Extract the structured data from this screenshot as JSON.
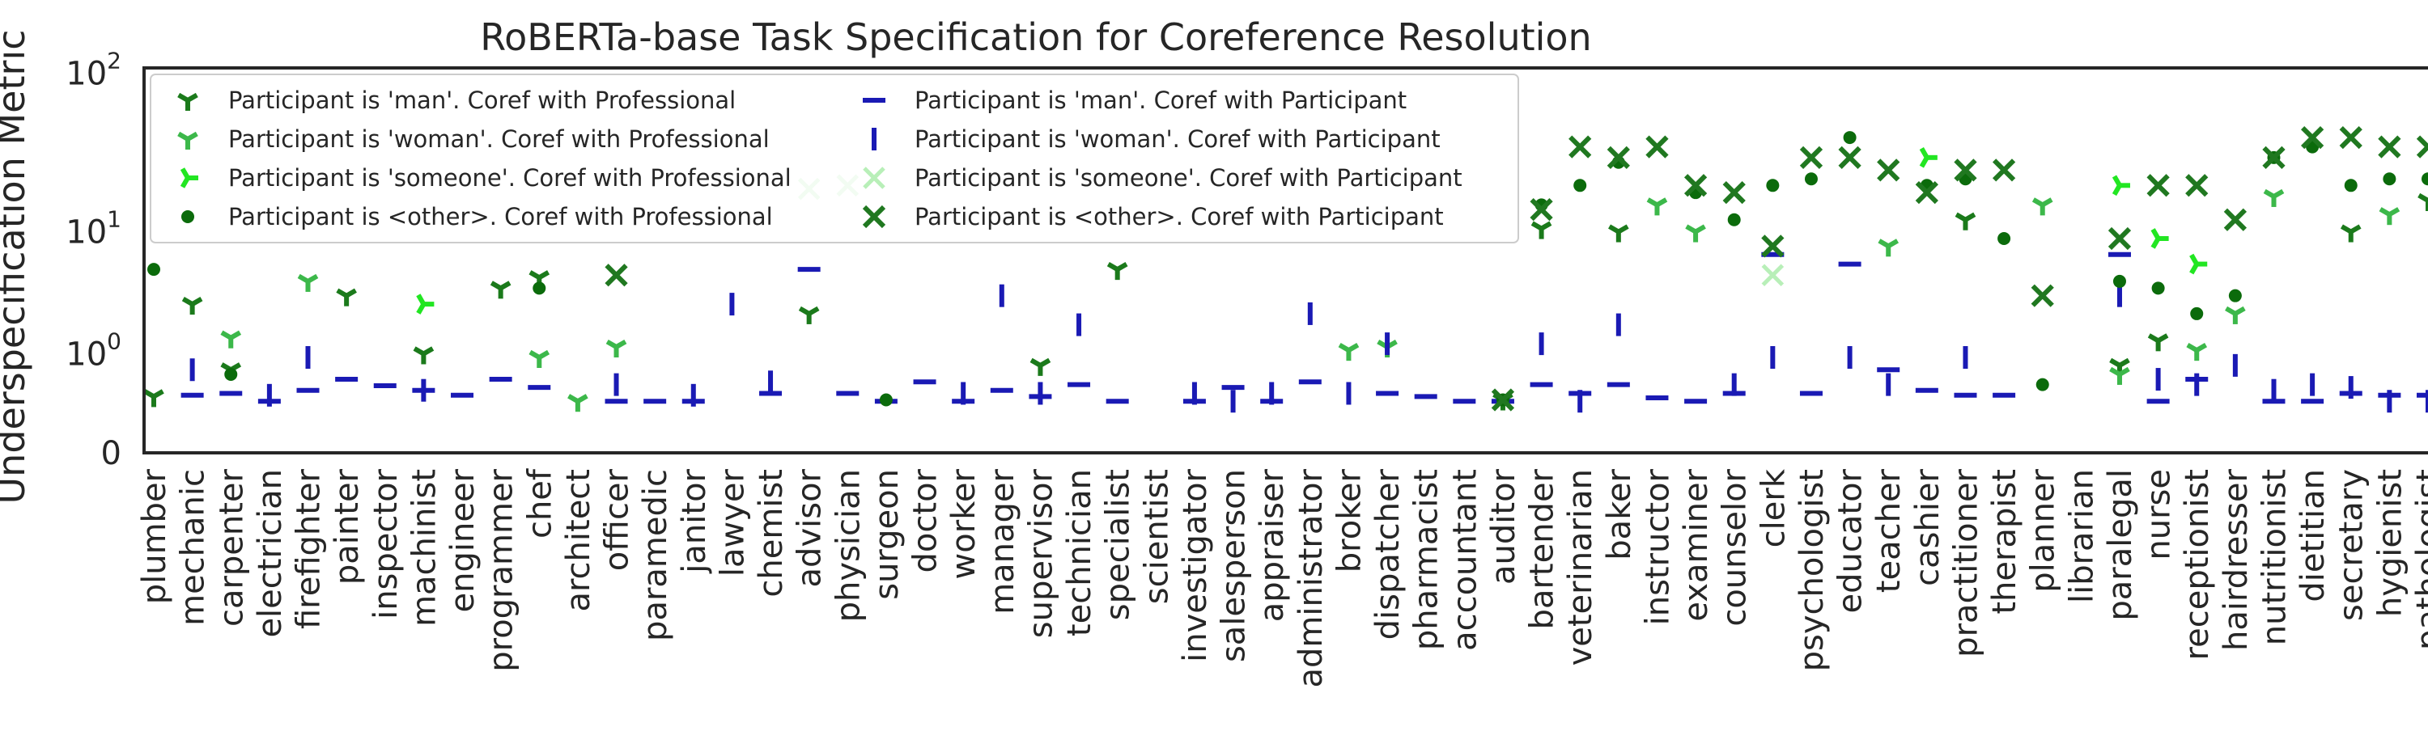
{
  "chart_data": {
    "type": "scatter",
    "title": "RoBERTa-base Task Specification for Coreference Resolution",
    "xlabel": "",
    "ylabel": "Underspecification Metric",
    "yscale": "symlog",
    "ylim": [
      0,
      100
    ],
    "yticks": [
      {
        "value": 0,
        "label": "0"
      },
      {
        "value": 1,
        "label": "10",
        "sup": "0"
      },
      {
        "value": 10,
        "label": "10",
        "sup": "1"
      },
      {
        "value": 100,
        "label": "10",
        "sup": "2"
      }
    ],
    "grid": false,
    "legend_position": "top-left",
    "categories": [
      "plumber",
      "mechanic",
      "carpenter",
      "electrician",
      "firefighter",
      "painter",
      "inspector",
      "machinist",
      "engineer",
      "programmer",
      "chef",
      "architect",
      "officer",
      "paramedic",
      "janitor",
      "lawyer",
      "chemist",
      "advisor",
      "physician",
      "surgeon",
      "doctor",
      "worker",
      "manager",
      "supervisor",
      "technician",
      "specialist",
      "scientist",
      "investigator",
      "salesperson",
      "appraiser",
      "administrator",
      "broker",
      "dispatcher",
      "pharmacist",
      "accountant",
      "auditor",
      "bartender",
      "veterinarian",
      "baker",
      "instructor",
      "examiner",
      "counselor",
      "clerk",
      "psychologist",
      "educator",
      "teacher",
      "cashier",
      "practitioner",
      "therapist",
      "planner",
      "librarian",
      "paralegal",
      "nurse",
      "receptionist",
      "hairdresser",
      "nutritionist",
      "dietitian",
      "secretary",
      "hygienist",
      "pathologist"
    ],
    "series": [
      {
        "name": "Participant is 'man'. Coref with Professional",
        "marker": "tri_down",
        "color": "#1b7a1b",
        "values": [
          0.1,
          3.0,
          0.6,
          null,
          null,
          3.5,
          null,
          1.0,
          null,
          4.0,
          4.8,
          null,
          null,
          null,
          null,
          null,
          null,
          2.5,
          null,
          null,
          null,
          null,
          null,
          0.7,
          null,
          5.5,
          null,
          null,
          null,
          null,
          null,
          null,
          null,
          null,
          null,
          0.05,
          10.5,
          null,
          10,
          null,
          null,
          null,
          null,
          null,
          null,
          null,
          null,
          12,
          null,
          null,
          null,
          0.7,
          1.4,
          null,
          null,
          null,
          null,
          10,
          null,
          16
        ]
      },
      {
        "name": "Participant is 'man'. Coref with Participant",
        "marker": "hline",
        "color": "#1a1ab4",
        "values": [
          null,
          0.12,
          0.15,
          0.03,
          0.2,
          0.4,
          0.28,
          0.2,
          0.12,
          0.4,
          0.25,
          null,
          0.03,
          0.03,
          0.03,
          null,
          0.15,
          5.5,
          0.15,
          0.03,
          0.35,
          0.03,
          0.2,
          0.1,
          0.3,
          0.03,
          null,
          0.03,
          0.25,
          0.03,
          0.35,
          null,
          0.15,
          0.1,
          0.03,
          0.03,
          0.3,
          0.15,
          0.3,
          0.08,
          0.03,
          0.15,
          7,
          0.15,
          6,
          0.6,
          0.2,
          0.12,
          0.12,
          null,
          null,
          7,
          0.03,
          0.4,
          null,
          0.03,
          0.03,
          0.15,
          0.12,
          0.12
        ]
      },
      {
        "name": "Participant is 'woman'. Coref with Professional",
        "marker": "tri_down",
        "color": "#3cb84a",
        "values": [
          null,
          null,
          1.5,
          null,
          4.5,
          null,
          null,
          null,
          null,
          null,
          0.9,
          0.03,
          1.2,
          null,
          null,
          null,
          null,
          null,
          null,
          null,
          null,
          null,
          null,
          null,
          null,
          null,
          null,
          null,
          null,
          null,
          null,
          1.1,
          1.2,
          null,
          null,
          null,
          null,
          null,
          null,
          15,
          10,
          null,
          null,
          null,
          null,
          8,
          null,
          null,
          null,
          15,
          null,
          0.5,
          null,
          1.1,
          2.5,
          17,
          null,
          null,
          13,
          null
        ]
      },
      {
        "name": "Participant is 'woman'. Coref with Participant",
        "marker": "vline",
        "color": "#1a1ab4",
        "values": [
          null,
          0.6,
          null,
          0.12,
          0.9,
          null,
          null,
          0.2,
          null,
          null,
          null,
          null,
          0.3,
          null,
          0.12,
          3.0,
          0.35,
          null,
          null,
          null,
          null,
          0.15,
          3.5,
          0.15,
          2.0,
          null,
          null,
          0.15,
          0.03,
          0.15,
          2.5,
          0.15,
          1.3,
          null,
          null,
          null,
          1.3,
          0.03,
          2.0,
          null,
          null,
          0.3,
          0.9,
          null,
          0.9,
          0.3,
          null,
          0.9,
          null,
          null,
          null,
          3.5,
          0.4,
          0.3,
          0.7,
          0.2,
          0.3,
          0.25,
          0.03,
          0.03
        ]
      },
      {
        "name": "Participant is 'someone'. Coref with Professional",
        "marker": "tri_left",
        "color": "#22e622",
        "values": [
          null,
          null,
          null,
          null,
          null,
          null,
          null,
          3.0,
          null,
          null,
          null,
          null,
          null,
          null,
          null,
          null,
          null,
          null,
          null,
          null,
          null,
          null,
          null,
          null,
          null,
          null,
          null,
          null,
          null,
          null,
          null,
          null,
          null,
          null,
          null,
          null,
          null,
          null,
          null,
          null,
          null,
          null,
          null,
          null,
          null,
          null,
          30,
          null,
          null,
          null,
          null,
          20,
          9,
          6,
          null,
          null,
          null,
          null,
          null,
          null
        ]
      },
      {
        "name": "Participant is 'someone'. Coref with Participant",
        "marker": "x",
        "color": "#b8efb8",
        "values": [
          null,
          null,
          null,
          null,
          null,
          null,
          null,
          null,
          null,
          null,
          null,
          null,
          null,
          null,
          null,
          null,
          null,
          19,
          20,
          null,
          null,
          null,
          null,
          null,
          null,
          null,
          null,
          null,
          null,
          null,
          null,
          null,
          null,
          null,
          null,
          null,
          null,
          null,
          null,
          null,
          null,
          null,
          5,
          null,
          null,
          null,
          null,
          null,
          null,
          null,
          null,
          null,
          null,
          null,
          null,
          null,
          null,
          null,
          null,
          null
        ]
      },
      {
        "name": "Participant is <other>. Coref with Professional",
        "marker": "circle",
        "color": "#0b6b0b",
        "values": [
          5.5,
          null,
          0.5,
          null,
          null,
          null,
          null,
          null,
          null,
          null,
          4.0,
          null,
          null,
          null,
          null,
          null,
          null,
          null,
          null,
          0.05,
          null,
          null,
          null,
          null,
          null,
          null,
          null,
          null,
          null,
          null,
          null,
          null,
          null,
          null,
          null,
          0.05,
          15,
          20,
          28,
          null,
          18,
          12,
          20,
          22,
          40,
          null,
          20,
          22,
          9,
          0.3,
          null,
          4.5,
          4,
          2.5,
          3.5,
          30,
          35,
          20,
          22,
          22
        ]
      },
      {
        "name": "Participant is <other>. Coref with Participant",
        "marker": "x_bold",
        "color": "#207820",
        "values": [
          null,
          null,
          null,
          null,
          null,
          null,
          null,
          null,
          null,
          null,
          null,
          null,
          5.0,
          null,
          null,
          null,
          null,
          null,
          null,
          null,
          null,
          null,
          null,
          null,
          null,
          null,
          null,
          null,
          null,
          null,
          null,
          null,
          null,
          null,
          null,
          0.05,
          14,
          35,
          30,
          35,
          20,
          18,
          8,
          30,
          30,
          25,
          18,
          25,
          25,
          3.5,
          null,
          9,
          20,
          20,
          12,
          30,
          40,
          40,
          35,
          35
        ]
      }
    ]
  }
}
